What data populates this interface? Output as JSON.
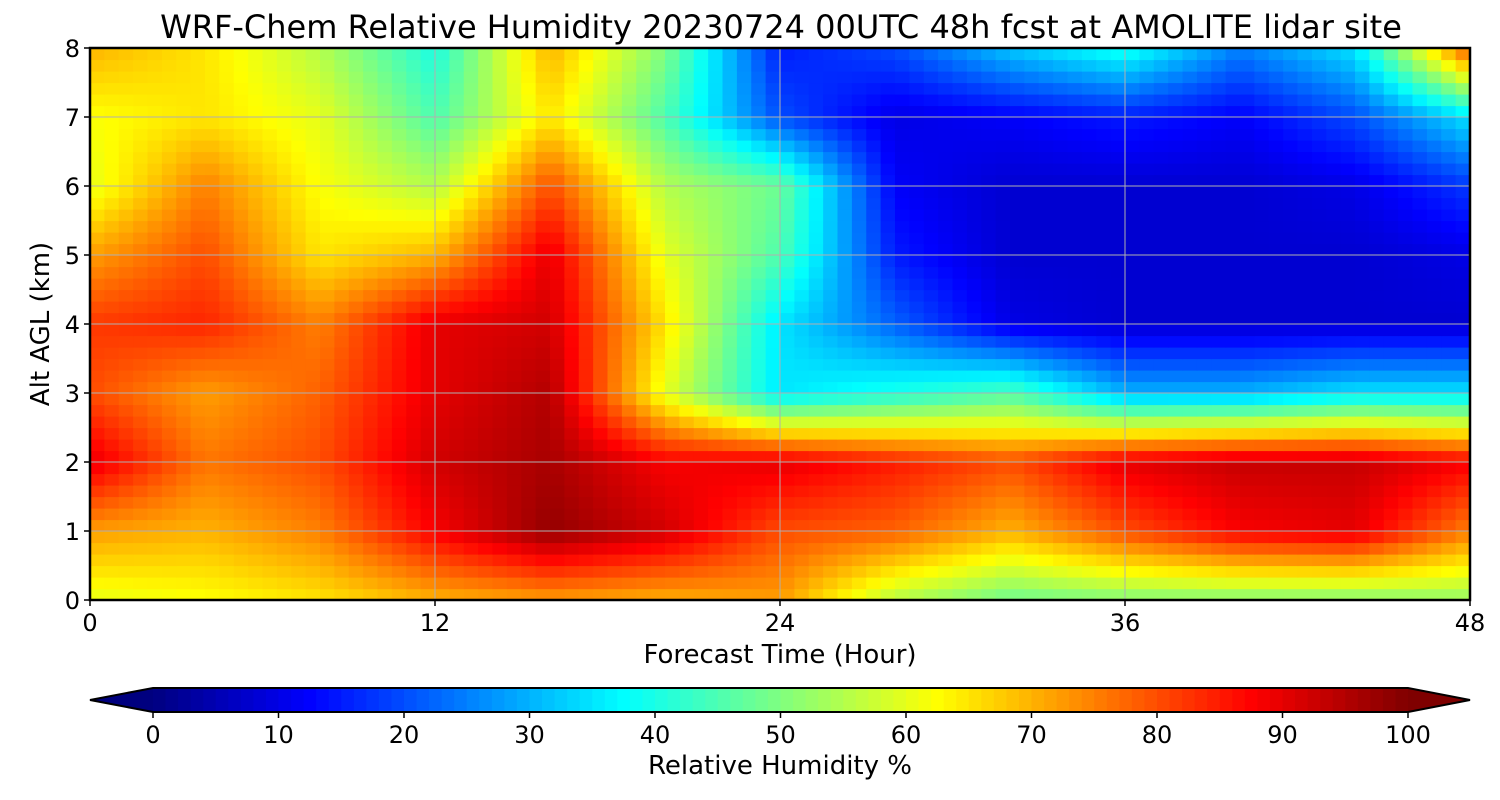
{
  "chart_data": {
    "type": "heatmap",
    "title": "WRF-Chem Relative Humidity 20230724 00UTC 48h fcst at AMOLITE lidar site",
    "xlabel": "Forecast Time (Hour)",
    "ylabel": "Alt AGL (km)",
    "colorbar_label": "Relative Humidity %",
    "colormap": "jet",
    "grid": true,
    "colorbar_extend": "both",
    "xlim": [
      0,
      48
    ],
    "ylim": [
      0,
      8
    ],
    "clim": [
      0,
      100
    ],
    "xticks": [
      0,
      12,
      24,
      36,
      48
    ],
    "yticks": [
      0,
      1,
      2,
      3,
      4,
      5,
      6,
      7,
      8
    ],
    "cticks": [
      0,
      10,
      20,
      30,
      40,
      50,
      60,
      70,
      80,
      90,
      100
    ],
    "x": [
      0,
      4,
      8,
      12,
      16,
      20,
      24,
      28,
      32,
      36,
      40,
      44,
      48
    ],
    "y": [
      0,
      1,
      2,
      3,
      4,
      5,
      6,
      7,
      8
    ],
    "values": [
      [
        60,
        62,
        65,
        70,
        72,
        70,
        72,
        55,
        48,
        50,
        50,
        50,
        52
      ],
      [
        72,
        70,
        75,
        88,
        98,
        92,
        80,
        78,
        70,
        80,
        88,
        90,
        75
      ],
      [
        90,
        76,
        80,
        92,
        96,
        88,
        90,
        85,
        80,
        90,
        93,
        93,
        88
      ],
      [
        80,
        72,
        78,
        90,
        95,
        60,
        35,
        40,
        45,
        30,
        30,
        35,
        35
      ],
      [
        82,
        84,
        75,
        90,
        92,
        65,
        35,
        22,
        10,
        8,
        8,
        8,
        8
      ],
      [
        72,
        80,
        65,
        70,
        90,
        60,
        45,
        15,
        8,
        8,
        8,
        8,
        10
      ],
      [
        60,
        75,
        62,
        55,
        80,
        55,
        48,
        12,
        8,
        8,
        8,
        10,
        18
      ],
      [
        62,
        65,
        60,
        45,
        65,
        45,
        20,
        10,
        12,
        15,
        12,
        20,
        35
      ],
      [
        70,
        65,
        55,
        40,
        70,
        50,
        15,
        20,
        32,
        40,
        25,
        35,
        80
      ]
    ]
  }
}
